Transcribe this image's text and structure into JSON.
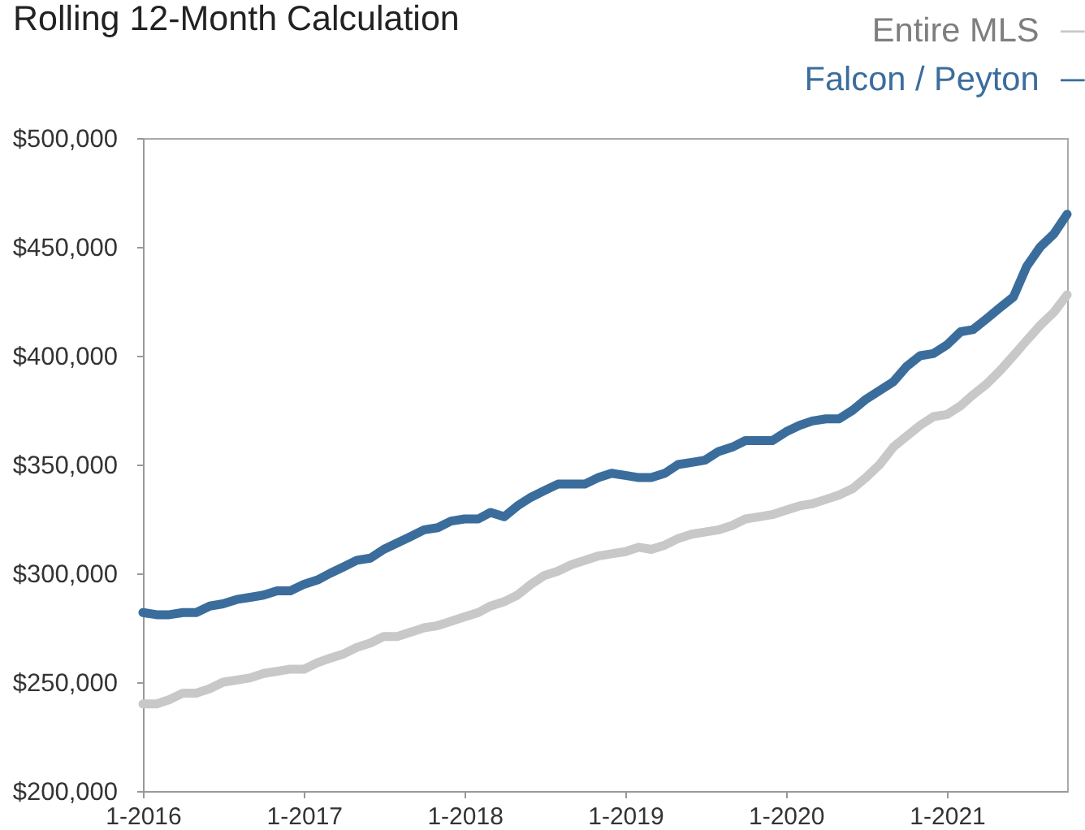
{
  "chart_data": {
    "type": "line",
    "title": "Rolling 12-Month Calculation",
    "x": [
      "2016-01",
      "2016-02",
      "2016-03",
      "2016-04",
      "2016-05",
      "2016-06",
      "2016-07",
      "2016-08",
      "2016-09",
      "2016-10",
      "2016-11",
      "2016-12",
      "2017-01",
      "2017-02",
      "2017-03",
      "2017-04",
      "2017-05",
      "2017-06",
      "2017-07",
      "2017-08",
      "2017-09",
      "2017-10",
      "2017-11",
      "2017-12",
      "2018-01",
      "2018-02",
      "2018-03",
      "2018-04",
      "2018-05",
      "2018-06",
      "2018-07",
      "2018-08",
      "2018-09",
      "2018-10",
      "2018-11",
      "2018-12",
      "2019-01",
      "2019-02",
      "2019-03",
      "2019-04",
      "2019-05",
      "2019-06",
      "2019-07",
      "2019-08",
      "2019-09",
      "2019-10",
      "2019-11",
      "2019-12",
      "2020-01",
      "2020-02",
      "2020-03",
      "2020-04",
      "2020-05",
      "2020-06",
      "2020-07",
      "2020-08",
      "2020-09",
      "2020-10",
      "2020-11",
      "2020-12",
      "2021-01",
      "2021-02",
      "2021-03",
      "2021-04",
      "2021-05",
      "2021-06",
      "2021-07",
      "2021-08",
      "2021-09",
      "2021-10"
    ],
    "series": [
      {
        "name": "Entire MLS",
        "color": "#c8c8c8",
        "values": [
          240000,
          240000,
          242000,
          245000,
          245000,
          247000,
          250000,
          251000,
          252000,
          254000,
          255000,
          256000,
          256000,
          259000,
          261000,
          263000,
          266000,
          268000,
          271000,
          271000,
          273000,
          275000,
          276000,
          278000,
          280000,
          282000,
          285000,
          287000,
          290000,
          295000,
          299000,
          301000,
          304000,
          306000,
          308000,
          309000,
          310000,
          312000,
          311000,
          313000,
          316000,
          318000,
          319000,
          320000,
          322000,
          325000,
          326000,
          327000,
          329000,
          331000,
          332000,
          334000,
          336000,
          339000,
          344000,
          350000,
          358000,
          363000,
          368000,
          372000,
          373000,
          377000,
          382000,
          387000,
          393000,
          400000,
          407000,
          414000,
          420000,
          428000
        ]
      },
      {
        "name": "Falcon / Peyton",
        "color": "#3b6d9c",
        "values": [
          282000,
          281000,
          281000,
          282000,
          282000,
          285000,
          286000,
          288000,
          289000,
          290000,
          292000,
          292000,
          295000,
          297000,
          300000,
          303000,
          306000,
          307000,
          311000,
          314000,
          317000,
          320000,
          321000,
          324000,
          325000,
          325000,
          328000,
          326000,
          331000,
          335000,
          338000,
          341000,
          341000,
          341000,
          344000,
          346000,
          345000,
          344000,
          344000,
          346000,
          350000,
          351000,
          352000,
          356000,
          358000,
          361000,
          361000,
          361000,
          365000,
          368000,
          370000,
          371000,
          371000,
          375000,
          380000,
          384000,
          388000,
          395000,
          400000,
          401000,
          405000,
          411000,
          412000,
          417000,
          422000,
          427000,
          441000,
          450000,
          456000,
          465000
        ]
      }
    ],
    "xlim": [
      "2016-01",
      "2021-10"
    ],
    "xticks": [
      {
        "value": "2016-01",
        "label": "1-2016"
      },
      {
        "value": "2017-01",
        "label": "1-2017"
      },
      {
        "value": "2018-01",
        "label": "1-2018"
      },
      {
        "value": "2019-01",
        "label": "1-2019"
      },
      {
        "value": "2020-01",
        "label": "1-2020"
      },
      {
        "value": "2021-01",
        "label": "1-2021"
      }
    ],
    "ylim": [
      200000,
      500000
    ],
    "yticks": [
      {
        "value": 200000,
        "label": "$200,000"
      },
      {
        "value": 250000,
        "label": "$250,000"
      },
      {
        "value": 300000,
        "label": "$300,000"
      },
      {
        "value": 350000,
        "label": "$350,000"
      },
      {
        "value": 400000,
        "label": "$400,000"
      },
      {
        "value": 450000,
        "label": "$450,000"
      },
      {
        "value": 500000,
        "label": "$500,000"
      }
    ],
    "grid": false,
    "legend": "top right"
  }
}
